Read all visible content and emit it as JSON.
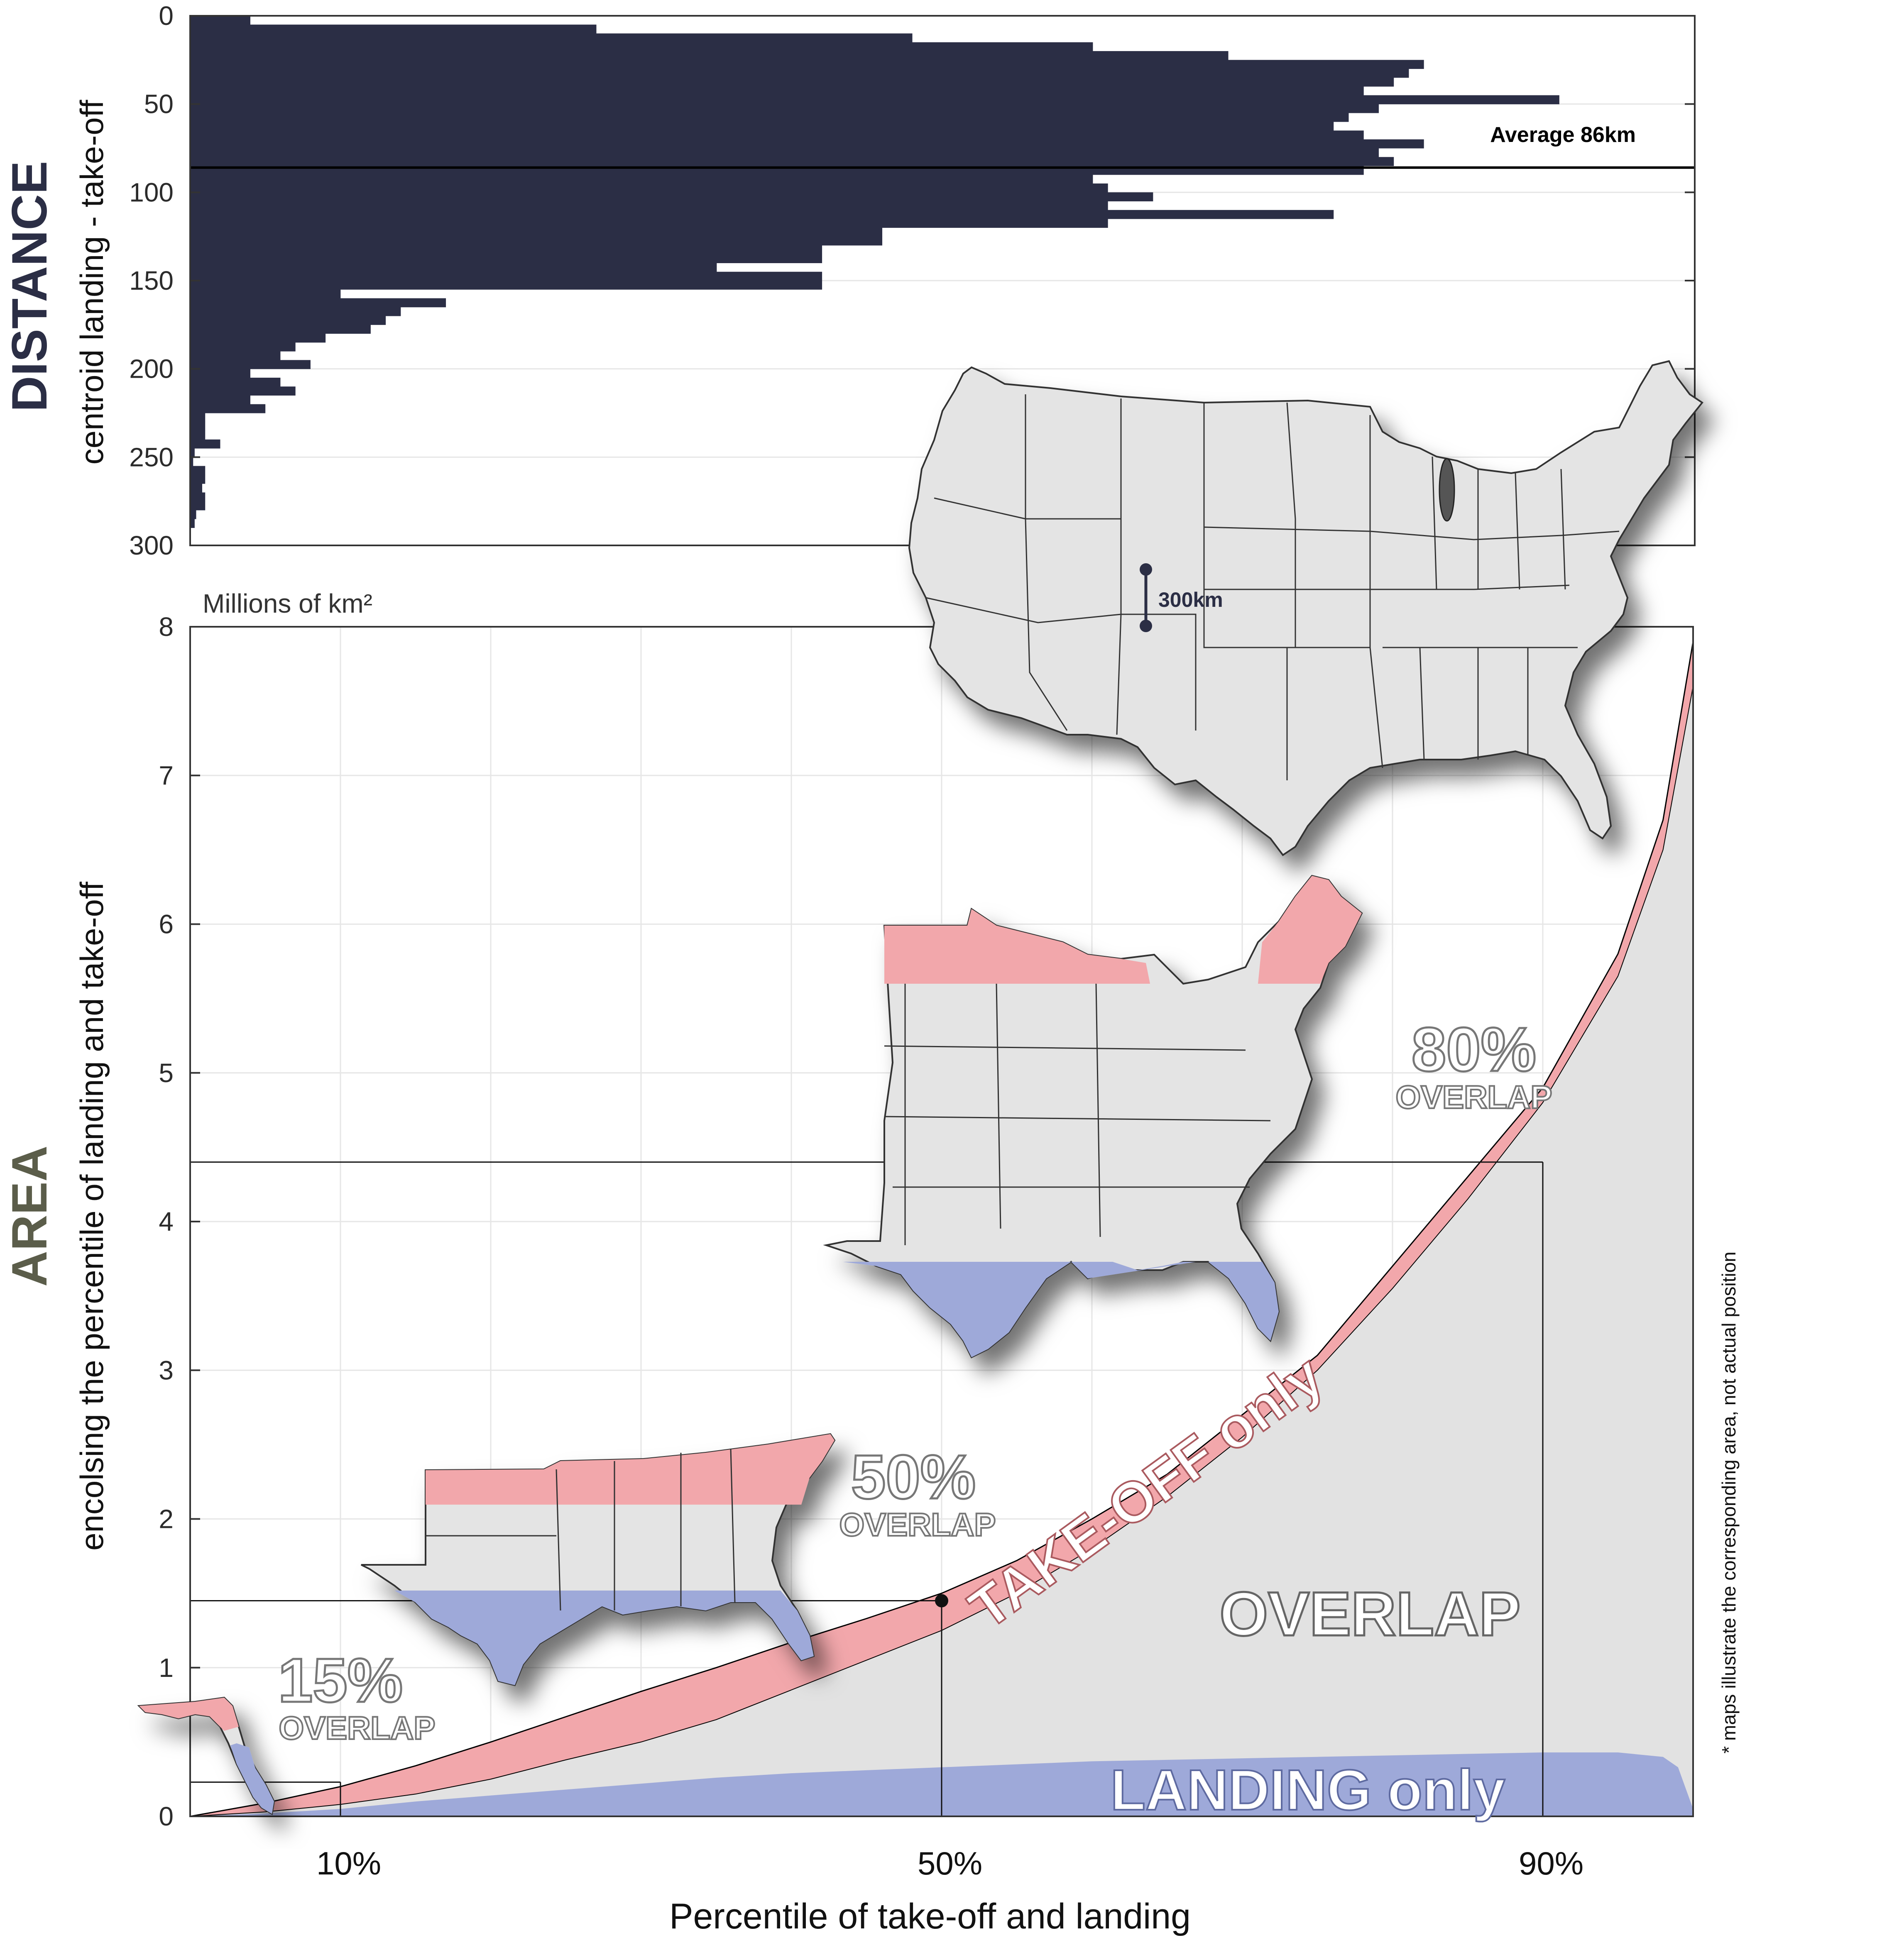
{
  "labels": {
    "distance_title": "DISTANCE",
    "distance_ylabel": "centroid landing - take-off",
    "area_title": "AREA",
    "area_ylabel": "encolsing the percentile of landing and take-off",
    "area_unit": "Millions of km²",
    "xlabel": "Percentile of take-off and landing",
    "average": "Average 86km",
    "scale_bar": "300km",
    "footnote": "* maps illustrate the corresponding area, not actual position",
    "takeoff_only": "TAKE-OFF only",
    "landing_only": "LANDING only",
    "overlap": "OVERLAP",
    "overlap_word": "OVERLAP",
    "overlap_15": "15%",
    "overlap_50": "50%",
    "overlap_80": "80%"
  },
  "colors": {
    "bars": "#2b2e45",
    "takeoff": "#f2a7ab",
    "landing": "#9ea9d9",
    "overlap": "#e2e2e2",
    "distance_title": "#2b2e45",
    "area_title": "#5b5d4a",
    "map_fill": "#e4e4e4"
  },
  "chart_data": [
    {
      "type": "bar",
      "orientation": "horizontal",
      "title": "DISTANCE",
      "ylabel": "centroid landing - take-off",
      "ylim": [
        0,
        300
      ],
      "yticks": [
        0,
        50,
        100,
        150,
        200,
        250,
        300
      ],
      "bin_width": 5,
      "bins": [
        0,
        5,
        10,
        15,
        20,
        25,
        30,
        35,
        40,
        45,
        50,
        55,
        60,
        65,
        70,
        75,
        80,
        85,
        90,
        95,
        100,
        105,
        110,
        115,
        120,
        125,
        130,
        135,
        140,
        145,
        150,
        155,
        160,
        165,
        170,
        175,
        180,
        185,
        190,
        195,
        200,
        205,
        210,
        215,
        220,
        225,
        230,
        235,
        240,
        245,
        250,
        255,
        260,
        265,
        270,
        275,
        280,
        285
      ],
      "values": [
        0.04,
        0.27,
        0.48,
        0.6,
        0.69,
        0.82,
        0.81,
        0.8,
        0.78,
        0.91,
        0.79,
        0.77,
        0.76,
        0.78,
        0.82,
        0.79,
        0.8,
        0.78,
        0.6,
        0.61,
        0.64,
        0.61,
        0.76,
        0.61,
        0.46,
        0.46,
        0.42,
        0.42,
        0.35,
        0.42,
        0.42,
        0.1,
        0.17,
        0.14,
        0.13,
        0.12,
        0.09,
        0.07,
        0.06,
        0.08,
        0.04,
        0.06,
        0.07,
        0.04,
        0.05,
        0.01,
        0.01,
        0.01,
        0.02,
        0.003,
        0.002,
        0.01,
        0.01,
        0.008,
        0.01,
        0.01,
        0.004,
        0.003
      ],
      "average": 86,
      "average_label": "Average 86km"
    },
    {
      "type": "area",
      "xlabel": "Percentile of take-off and landing",
      "ylabel": "encolsing the percentile of landing and take-off",
      "unit": "Millions of km²",
      "xlim": [
        0,
        100
      ],
      "ylim": [
        0,
        8
      ],
      "yticks": [
        0,
        1,
        2,
        3,
        4,
        5,
        6,
        7,
        8
      ],
      "xtick_labels": [
        {
          "x": 10,
          "label": "10%"
        },
        {
          "x": 50,
          "label": "50%"
        },
        {
          "x": 90,
          "label": "90%"
        }
      ],
      "x": [
        0,
        5,
        10,
        15,
        20,
        25,
        30,
        35,
        40,
        45,
        50,
        55,
        60,
        65,
        70,
        75,
        80,
        85,
        90,
        95,
        98,
        99,
        100
      ],
      "series": [
        {
          "name": "TAKE-OFF only",
          "values": [
            0,
            0.09,
            0.2,
            0.34,
            0.5,
            0.67,
            0.84,
            1.0,
            1.17,
            1.33,
            1.5,
            1.72,
            2.0,
            2.3,
            2.7,
            3.1,
            3.7,
            4.3,
            4.9,
            5.8,
            6.7,
            7.3,
            7.9
          ]
        },
        {
          "name": "OVERLAP",
          "values": [
            0,
            0.03,
            0.08,
            0.15,
            0.25,
            0.38,
            0.5,
            0.65,
            0.85,
            1.05,
            1.25,
            1.5,
            1.8,
            2.15,
            2.55,
            3.0,
            3.55,
            4.15,
            4.8,
            5.65,
            6.5,
            7.05,
            7.6
          ]
        },
        {
          "name": "LANDING only",
          "values": [
            0,
            0.02,
            0.05,
            0.1,
            0.14,
            0.18,
            0.22,
            0.26,
            0.29,
            0.31,
            0.33,
            0.35,
            0.37,
            0.38,
            0.39,
            0.4,
            0.41,
            0.42,
            0.43,
            0.43,
            0.4,
            0.33,
            0.05
          ]
        }
      ],
      "markers": [
        {
          "x": 10,
          "y": 0.23,
          "overlap_label": "15%"
        },
        {
          "x": 50,
          "y": 1.45,
          "overlap_label": "50%"
        },
        {
          "x": 90,
          "y": 4.4,
          "overlap_label": "80%"
        }
      ],
      "grid": true
    }
  ]
}
